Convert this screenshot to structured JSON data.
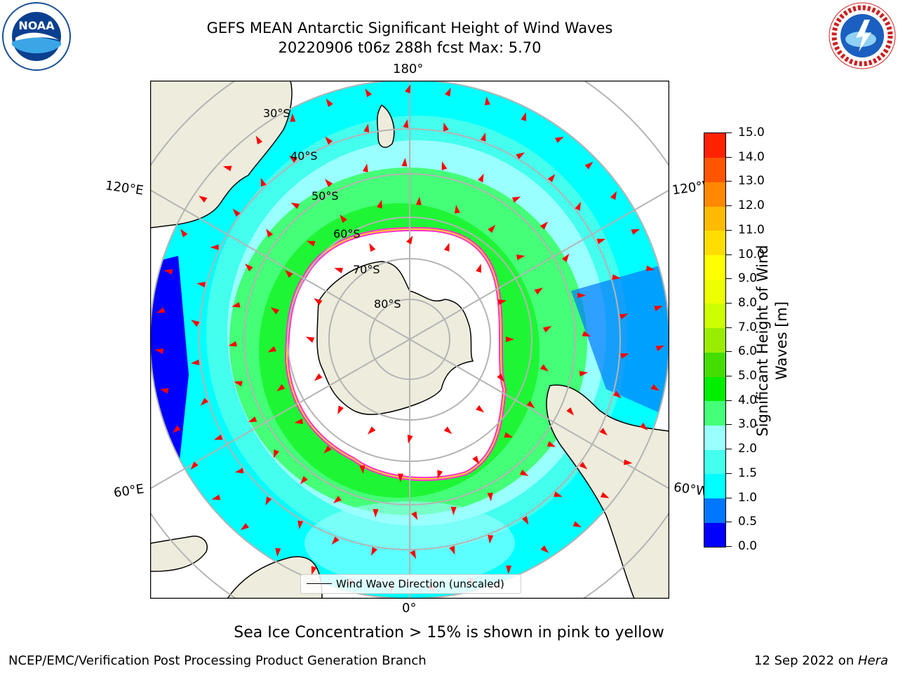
{
  "title": {
    "line1": "GEFS MEAN Antarctic Significant Height of Wind Waves",
    "line2": "20220906 t06z 288h fcst   Max: 5.70"
  },
  "map": {
    "projection": "south-polar-stereographic",
    "longitude_labels": {
      "top": "180°",
      "bottom": "0°",
      "left_upper": "120°E",
      "left_lower": "60°E",
      "right_upper": "120°W",
      "right_lower": "60°W"
    },
    "latitude_labels": [
      "30°S",
      "40°S",
      "50°S",
      "60°S",
      "70°S",
      "80°S"
    ],
    "colors": {
      "land": "#eeecdc",
      "sea_ice_edge": [
        "#ff33cc",
        "#ffcc33"
      ],
      "arrows": "#ff0000",
      "grid": "#b4b4b4"
    }
  },
  "legend": {
    "label": "Wind Wave Direction (unscaled)"
  },
  "colorbar": {
    "title": "Significant Height of Wind Waves [m]",
    "ticks": [
      "0.0",
      "0.5",
      "1.0",
      "1.5",
      "2.0",
      "3.0",
      "4.0",
      "5.0",
      "6.0",
      "7.0",
      "8.0",
      "9.0",
      "10.0",
      "11.0",
      "12.0",
      "13.0",
      "14.0",
      "15.0"
    ],
    "colors": [
      "#0000ff",
      "#0077ff",
      "#00ffff",
      "#44ffee",
      "#99ffff",
      "#44ff77",
      "#00ee00",
      "#44dd00",
      "#99ee00",
      "#ccff00",
      "#eeff00",
      "#ffff00",
      "#ffdd00",
      "#ffbb00",
      "#ff8800",
      "#ff5500",
      "#ff2200"
    ]
  },
  "note": "Sea Ice Concentration > 15% is shown in pink to yellow",
  "footer": {
    "left": "NCEP/EMC/Verification Post Processing Product Generation Branch",
    "right_prefix": "12 Sep 2022 on ",
    "right_host": "Hera"
  },
  "logos": {
    "left": "NOAA",
    "left_ring": "NATIONAL OCEANIC AND ATMOSPHERIC ADMINISTRATION · U.S. DEPARTMENT OF COMMERCE",
    "right": "NATIONAL WEATHER SERVICE"
  }
}
